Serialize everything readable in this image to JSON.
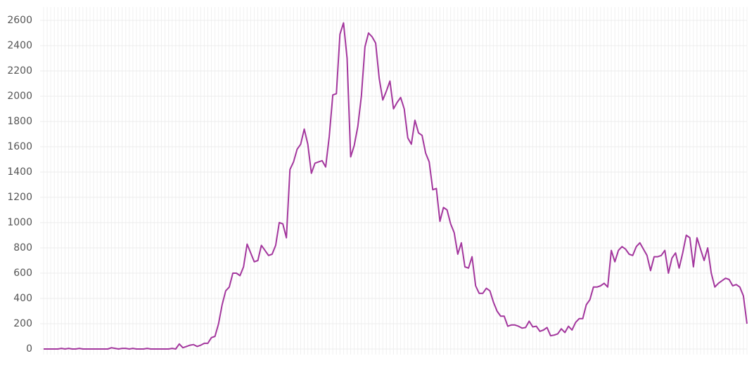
{
  "chart_data": {
    "type": "line",
    "series": [
      {
        "color": "#a3369d",
        "values": [
          0,
          0,
          0,
          0,
          0,
          5,
          0,
          5,
          0,
          0,
          5,
          0,
          0,
          0,
          0,
          0,
          0,
          0,
          0,
          10,
          5,
          0,
          5,
          5,
          0,
          5,
          0,
          0,
          0,
          5,
          0,
          0,
          0,
          0,
          0,
          0,
          5,
          0,
          40,
          10,
          20,
          30,
          35,
          20,
          30,
          45,
          45,
          90,
          100,
          200,
          350,
          460,
          490,
          600,
          600,
          580,
          650,
          830,
          760,
          690,
          700,
          820,
          780,
          740,
          750,
          820,
          1000,
          990,
          880,
          1420,
          1480,
          1580,
          1620,
          1740,
          1620,
          1390,
          1470,
          1480,
          1490,
          1440,
          1680,
          2010,
          2020,
          2490,
          2580,
          2300,
          1520,
          1610,
          1760,
          2000,
          2390,
          2500,
          2470,
          2420,
          2140,
          1970,
          2040,
          2120,
          1900,
          1950,
          1990,
          1900,
          1670,
          1620,
          1810,
          1710,
          1690,
          1550,
          1480,
          1260,
          1270,
          1010,
          1120,
          1100,
          990,
          920,
          750,
          840,
          650,
          640,
          730,
          500,
          440,
          440,
          480,
          460,
          370,
          300,
          260,
          260,
          180,
          190,
          190,
          180,
          165,
          170,
          220,
          175,
          180,
          140,
          150,
          170,
          105,
          110,
          120,
          160,
          130,
          180,
          150,
          210,
          240,
          240,
          350,
          390,
          490,
          490,
          500,
          520,
          490,
          780,
          690,
          780,
          810,
          790,
          750,
          740,
          810,
          840,
          790,
          740,
          620,
          730,
          730,
          740,
          780,
          600,
          720,
          760,
          640,
          760,
          900,
          880,
          650,
          880,
          790,
          700,
          800,
          600,
          490,
          520,
          540,
          560,
          550,
          500,
          510,
          490,
          420,
          200
        ]
      }
    ],
    "ylim": [
      0,
      2600
    ],
    "yticks": [
      0,
      200,
      400,
      600,
      800,
      1000,
      1200,
      1400,
      1600,
      1800,
      2000,
      2200,
      2400,
      2600
    ],
    "grid": true
  }
}
